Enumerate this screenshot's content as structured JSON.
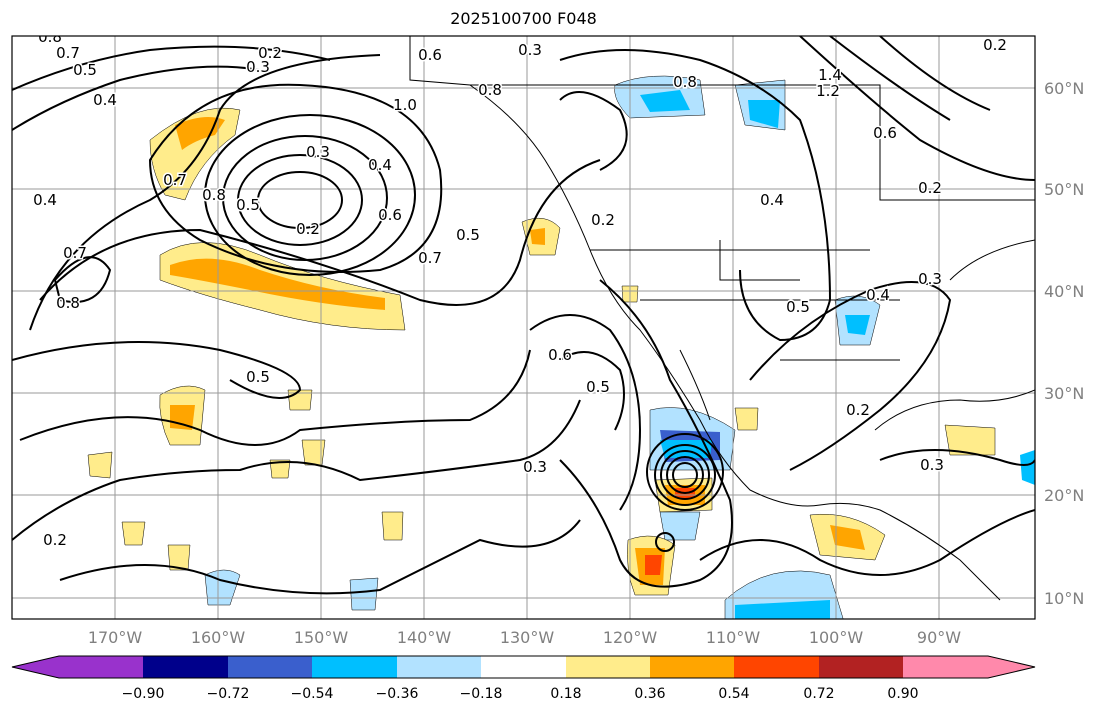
{
  "title": "2025100700 F048",
  "lat_labels": [
    "60°N",
    "50°N",
    "40°N",
    "30°N",
    "20°N",
    "10°N"
  ],
  "lon_labels": [
    "170°W",
    "160°W",
    "150°W",
    "140°W",
    "130°W",
    "120°W",
    "110°W",
    "100°W",
    "90°W"
  ],
  "colorbar": {
    "ticks": [
      "−0.90",
      "−0.72",
      "−0.54",
      "−0.36",
      "−0.18",
      "0.18",
      "0.36",
      "0.54",
      "0.72",
      "0.90"
    ],
    "colors": [
      "#9932cc",
      "#00008b",
      "#3a5fcd",
      "#00bfff",
      "#b2e2ff",
      "#ffffff",
      "#ffec8b",
      "#ffa500",
      "#ff4500",
      "#b22222",
      "#ff89ab"
    ]
  },
  "contour_labels": [
    "0.8",
    "0.7",
    "0.5",
    "0.4",
    "0.2",
    "0.3",
    "0.6",
    "0.3",
    "0.2",
    "0.4",
    "0.5",
    "0.6",
    "0.7",
    "0.5",
    "0.8",
    "0.7",
    "0.4",
    "0.7",
    "0.8",
    "0.5",
    "0.2",
    "0.3",
    "0.2",
    "0.6",
    "0.5",
    "0.3",
    "0.4",
    "1.4",
    "1.2",
    "0.8",
    "0.6",
    "0.2",
    "0.4",
    "0.5",
    "0.3",
    "0.2",
    "0.3",
    "0.2",
    "1.0",
    "0.8"
  ]
}
